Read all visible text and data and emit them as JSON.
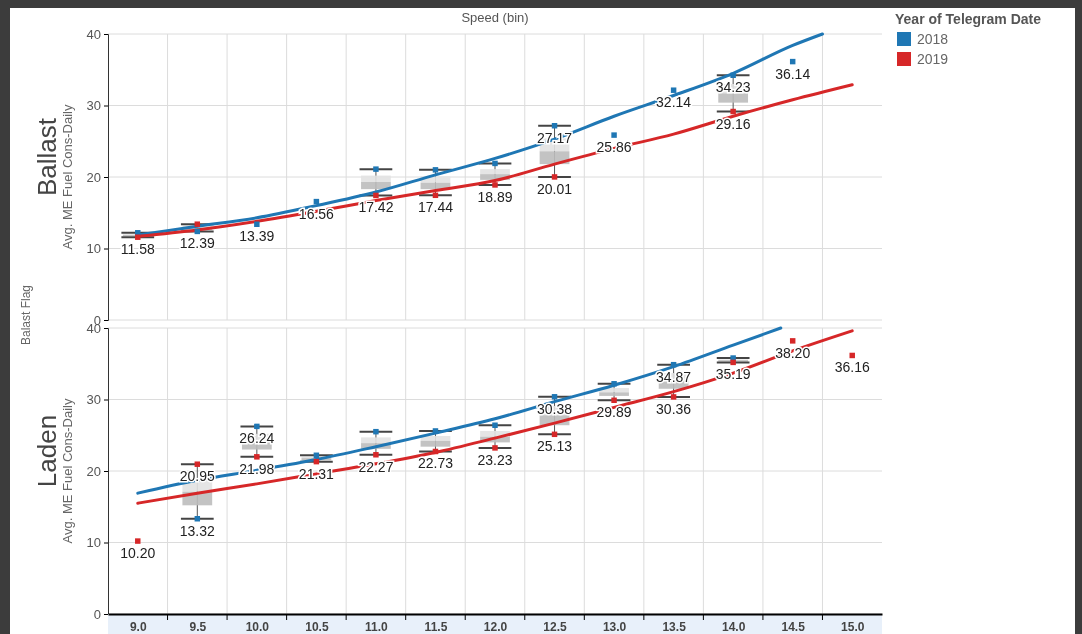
{
  "chart_data": [
    {
      "type": "scatter",
      "title": "Ballast",
      "xlabel": "Speed (bin)",
      "ylabel": "Avg. ME Fuel Cons-Daily",
      "legend_title": "Year of Telegram Date",
      "legend": "top right",
      "annotations": [
        "Balast Flag"
      ],
      "grid": true,
      "marker": "square",
      "tick_labels": "y",
      "xlim": [
        8.75,
        15.25
      ],
      "xticks": [
        {
          "value": 9.25,
          "label": null
        },
        {
          "value": 9.75,
          "label": null
        },
        {
          "value": 10.25,
          "label": null
        },
        {
          "value": 10.75,
          "label": null
        },
        {
          "value": 11.25,
          "label": null
        },
        {
          "value": 11.75,
          "label": null
        },
        {
          "value": 12.25,
          "label": null
        },
        {
          "value": 12.75,
          "label": null
        },
        {
          "value": 13.25,
          "label": null
        },
        {
          "value": 13.75,
          "label": null
        },
        {
          "value": 14.25,
          "label": null
        },
        {
          "value": 14.75,
          "label": null
        }
      ],
      "ylim": [
        0,
        40
      ],
      "yticks": [
        0,
        10,
        20,
        30,
        40
      ],
      "series": [
        {
          "type": "box",
          "color": "#bdbdbd",
          "x": [
            9,
            9.5,
            11,
            11.5,
            12,
            12.5,
            14
          ],
          "boxes": [
            {
              "low": 11.58,
              "q1": 11.7,
              "median": 11.9,
              "q3": 12.0,
              "high": 12.2
            },
            {
              "low": 12.39,
              "q1": 12.6,
              "median": 12.9,
              "q3": 13.2,
              "high": 13.4
            },
            {
              "low": 17.42,
              "q1": 18.3,
              "median": 19.3,
              "q3": 20.2,
              "high": 21.1
            },
            {
              "low": 17.44,
              "q1": 18.3,
              "median": 19.2,
              "q3": 20.1,
              "high": 21.0
            },
            {
              "low": 18.89,
              "q1": 19.6,
              "median": 20.4,
              "q3": 21.1,
              "high": 21.9
            },
            {
              "low": 20.01,
              "q1": 21.8,
              "median": 23.6,
              "q3": 25.4,
              "high": 27.17
            },
            {
              "low": 29.16,
              "q1": 30.4,
              "median": 31.7,
              "q3": 33.0,
              "high": 34.23
            }
          ]
        },
        {
          "type": "line",
          "marker": "none",
          "color": "#1f77b4",
          "x": [
            9,
            9.5,
            10,
            10.5,
            11,
            11.5,
            12,
            12.5,
            13,
            13.5,
            14,
            14.5,
            14.75
          ],
          "values": [
            11.9,
            13.1,
            14.3,
            16.0,
            17.9,
            20.3,
            22.6,
            25.3,
            28.5,
            31.4,
            34.5,
            38.4,
            40
          ]
        },
        {
          "type": "line",
          "marker": "none",
          "color": "#d62728",
          "x": [
            9,
            9.5,
            10,
            10.5,
            11,
            11.5,
            12,
            12.5,
            13,
            13.5,
            14,
            14.5,
            15
          ],
          "values": [
            11.7,
            12.6,
            13.8,
            15.2,
            16.7,
            18.1,
            19.5,
            21.8,
            24.0,
            26.0,
            28.5,
            30.8,
            32.9
          ]
        },
        {
          "name": "2018",
          "color": "#1f77b4",
          "x": [
            9,
            9.5,
            10,
            10.5,
            11,
            11.5,
            12,
            12.5,
            13,
            13.5,
            14,
            14.5
          ],
          "values": [
            12.2,
            12.39,
            13.39,
            16.56,
            21.1,
            21.0,
            21.9,
            27.17,
            25.86,
            32.14,
            34.23,
            36.14
          ],
          "value_labels": [
            null,
            "12.39",
            "13.39",
            "16.56",
            null,
            null,
            null,
            "27.17",
            "25.86",
            "32.14",
            "34.23",
            "36.14"
          ]
        },
        {
          "name": "2019",
          "color": "#d62728",
          "x": [
            9,
            9.5,
            11,
            11.5,
            12,
            12.5,
            14
          ],
          "values": [
            11.58,
            13.4,
            17.42,
            17.44,
            18.89,
            20.01,
            29.16
          ],
          "value_labels": [
            "11.58",
            null,
            "17.42",
            "17.44",
            "18.89",
            "20.01",
            "29.16"
          ]
        }
      ]
    },
    {
      "type": "scatter",
      "title": "Laden",
      "ylabel": "Avg. ME Fuel Cons-Daily",
      "grid": true,
      "marker": "square",
      "xlim": [
        8.75,
        15.25
      ],
      "xticks": [
        {
          "value": 9,
          "label": "9.0"
        },
        {
          "value": 9.5,
          "label": "9.5"
        },
        {
          "value": 10,
          "label": "10.0"
        },
        {
          "value": 10.5,
          "label": "10.5"
        },
        {
          "value": 11,
          "label": "11.0"
        },
        {
          "value": 11.5,
          "label": "11.5"
        },
        {
          "value": 12,
          "label": "12.0"
        },
        {
          "value": 12.5,
          "label": "12.5"
        },
        {
          "value": 13,
          "label": "13.0"
        },
        {
          "value": 13.5,
          "label": "13.5"
        },
        {
          "value": 14,
          "label": "14.0"
        },
        {
          "value": 14.5,
          "label": "14.5"
        },
        {
          "value": 15,
          "label": "15.0"
        },
        {
          "value": 9.25,
          "label": null
        },
        {
          "value": 9.75,
          "label": null
        },
        {
          "value": 10.25,
          "label": null
        },
        {
          "value": 10.75,
          "label": null
        },
        {
          "value": 11.25,
          "label": null
        },
        {
          "value": 11.75,
          "label": null
        },
        {
          "value": 12.25,
          "label": null
        },
        {
          "value": 12.75,
          "label": null
        },
        {
          "value": 13.25,
          "label": null
        },
        {
          "value": 13.75,
          "label": null
        },
        {
          "value": 14.25,
          "label": null
        },
        {
          "value": 14.75,
          "label": null
        }
      ],
      "ylim": [
        0,
        40
      ],
      "yticks": [
        0,
        10,
        20,
        30,
        40
      ],
      "series": [
        {
          "type": "box",
          "color": "#bdbdbd",
          "x": [
            9.5,
            10,
            10.5,
            11,
            11.5,
            12,
            12.5,
            13,
            13.5,
            14
          ],
          "boxes": [
            {
              "low": 13.32,
              "q1": 15.2,
              "median": 17.1,
              "q3": 19.0,
              "high": 20.95
            },
            {
              "low": 21.98,
              "q1": 23.0,
              "median": 24.1,
              "q3": 25.2,
              "high": 26.24
            },
            {
              "low": 21.31,
              "q1": 21.5,
              "median": 21.8,
              "q3": 22.0,
              "high": 22.2
            },
            {
              "low": 22.27,
              "q1": 23.1,
              "median": 23.9,
              "q3": 24.7,
              "high": 25.5
            },
            {
              "low": 22.73,
              "q1": 23.4,
              "median": 24.2,
              "q3": 24.9,
              "high": 25.6
            },
            {
              "low": 23.23,
              "q1": 24.0,
              "median": 24.8,
              "q3": 25.6,
              "high": 26.4
            },
            {
              "low": 25.13,
              "q1": 26.4,
              "median": 27.8,
              "q3": 29.1,
              "high": 30.38
            },
            {
              "low": 29.89,
              "q1": 30.5,
              "median": 31.0,
              "q3": 31.6,
              "high": 32.2
            },
            {
              "low": 30.36,
              "q1": 31.5,
              "median": 32.6,
              "q3": 33.7,
              "high": 34.87
            },
            {
              "low": 35.19,
              "q1": 35.3,
              "median": 35.5,
              "q3": 35.6,
              "high": 35.8
            }
          ]
        },
        {
          "type": "line",
          "marker": "none",
          "color": "#1f77b4",
          "x": [
            9,
            9.5,
            10,
            10.5,
            11,
            11.5,
            12,
            12.5,
            13,
            13.5,
            14,
            14.4
          ],
          "values": [
            16.9,
            18.7,
            20.1,
            21.6,
            23.4,
            25.3,
            27.3,
            29.7,
            32.0,
            34.6,
            37.6,
            40
          ]
        },
        {
          "type": "line",
          "marker": "none",
          "color": "#d62728",
          "x": [
            9,
            9.5,
            10,
            10.5,
            11,
            11.5,
            12,
            12.5,
            13,
            13.5,
            14,
            14.5,
            15
          ],
          "values": [
            15.5,
            16.9,
            18.2,
            19.6,
            21.0,
            22.6,
            24.6,
            26.7,
            28.9,
            31.1,
            33.7,
            36.8,
            39.6
          ]
        },
        {
          "color": "#1f77b4",
          "x": [
            9.5,
            10,
            10.5,
            11,
            11.5,
            12,
            12.5,
            13,
            13.5,
            14
          ],
          "values": [
            13.32,
            26.24,
            22.2,
            25.5,
            25.6,
            26.4,
            30.38,
            32.2,
            34.87,
            35.8
          ],
          "value_labels": [
            "13.32",
            "26.24",
            null,
            null,
            null,
            null,
            "30.38",
            null,
            "34.87",
            null
          ]
        },
        {
          "color": "#d62728",
          "x": [
            9,
            9.5,
            10,
            10.5,
            11,
            11.5,
            12,
            12.5,
            13,
            13.5,
            14,
            14.5,
            15
          ],
          "values": [
            10.2,
            20.95,
            21.98,
            21.31,
            22.27,
            22.73,
            23.23,
            25.13,
            29.89,
            30.36,
            35.19,
            38.2,
            36.16
          ],
          "value_labels": [
            "10.20",
            "20.95",
            "21.98",
            "21.31",
            "22.27",
            "22.73",
            "23.23",
            "25.13",
            "29.89",
            "30.36",
            "35.19",
            "38.20",
            "36.16"
          ]
        }
      ]
    }
  ]
}
